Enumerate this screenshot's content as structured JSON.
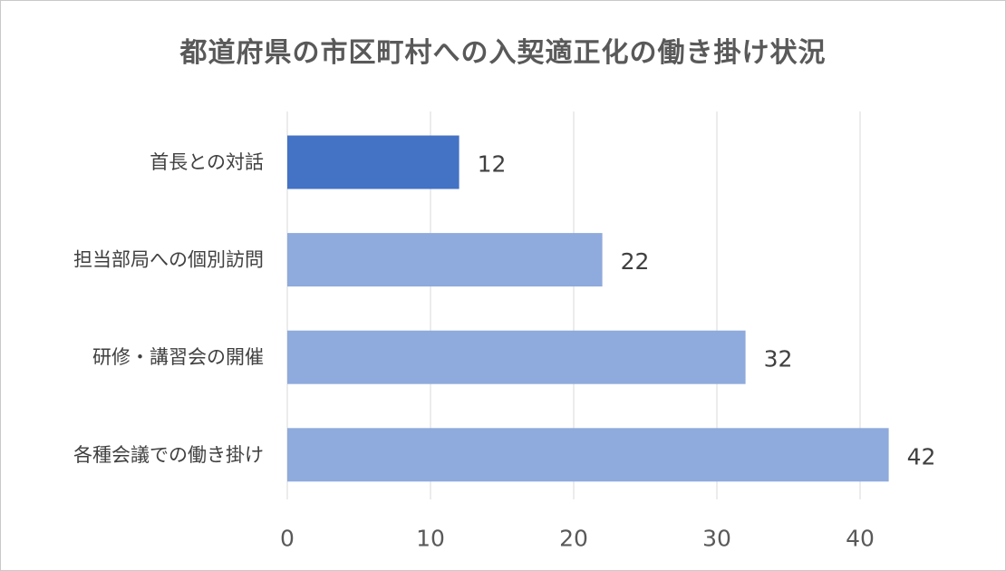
{
  "chart_data": {
    "type": "bar",
    "orientation": "horizontal",
    "title": "都道府県の市区町村への入契適正化の働き掛け状況",
    "categories": [
      "首長との対話",
      "担当部局への個別訪問",
      "研修・講習会の開催",
      "各種会議での働き掛け"
    ],
    "values": [
      12,
      22,
      32,
      42
    ],
    "data_labels": [
      "12",
      "22",
      "32",
      "42"
    ],
    "xlim": [
      0,
      45
    ],
    "x_ticks": [
      0,
      10,
      20,
      30,
      40
    ],
    "x_tick_labels": [
      "0",
      "10",
      "20",
      "30",
      "40"
    ],
    "grid": true,
    "colors": {
      "highlight": "#4472c4",
      "default": "#8faadc",
      "grid": "#d9d9d9",
      "text": "#404040"
    },
    "highlight_index": 0
  }
}
